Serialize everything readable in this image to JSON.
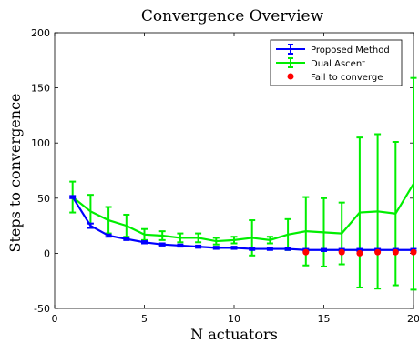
{
  "chart_data": {
    "type": "line",
    "title": "Convergence Overview",
    "xlabel": "N actuators",
    "ylabel": "Steps to convergence",
    "xlim": [
      0,
      20
    ],
    "ylim": [
      -50,
      200
    ],
    "xticks": [
      0,
      5,
      10,
      15,
      20
    ],
    "yticks": [
      -50,
      0,
      50,
      100,
      150,
      200
    ],
    "grid": false,
    "legend_position": "top-right",
    "x": [
      1,
      2,
      3,
      4,
      5,
      6,
      7,
      8,
      9,
      10,
      11,
      12,
      13,
      14,
      15,
      16,
      17,
      18,
      19,
      20
    ],
    "series": [
      {
        "name": "Proposed Method",
        "color": "#0000ff",
        "marker": "errorbar",
        "values": [
          51,
          25,
          16,
          13,
          10,
          8,
          7,
          6,
          5,
          5,
          4,
          4,
          4,
          3,
          3,
          3,
          3,
          3,
          3,
          3
        ],
        "err": [
          1,
          2,
          1,
          1,
          1,
          1,
          1,
          1,
          1,
          1,
          1,
          1,
          1,
          1,
          1,
          1,
          1,
          1,
          1,
          1
        ]
      },
      {
        "name": "Dual Ascent",
        "color": "#00ee00",
        "marker": "errorbar",
        "values": [
          51,
          38,
          30,
          25,
          17,
          16,
          14,
          14,
          11,
          12,
          14,
          12,
          17,
          20,
          19,
          18,
          37,
          38,
          36,
          63
        ],
        "err": [
          14,
          15,
          12,
          10,
          5,
          4,
          4,
          4,
          3,
          3,
          16,
          3,
          14,
          31,
          31,
          28,
          68,
          70,
          65,
          96
        ]
      },
      {
        "name": "Fail to converge",
        "color": "#ff0000",
        "marker": "dot",
        "x": [
          14,
          16,
          17,
          18,
          19,
          20
        ],
        "values": [
          1,
          1,
          0,
          1,
          1,
          1
        ]
      }
    ]
  }
}
